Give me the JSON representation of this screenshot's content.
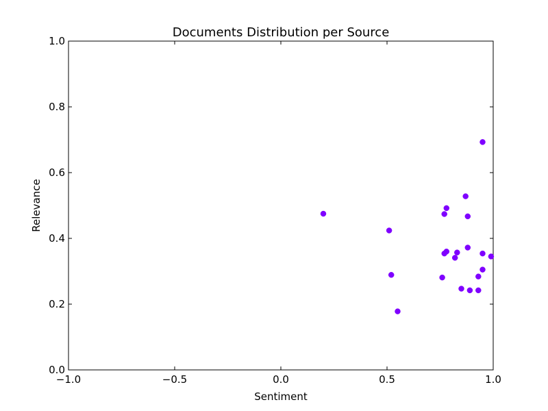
{
  "chart_data": {
    "type": "scatter",
    "title": "Documents Distribution per Source",
    "xlabel": "Sentiment",
    "ylabel": "Relevance",
    "xlim": [
      -1.0,
      1.0
    ],
    "ylim": [
      0.0,
      1.0
    ],
    "xticks": [
      -1.0,
      -0.5,
      0.0,
      0.5,
      1.0
    ],
    "xtick_labels": [
      "−1.0",
      "−0.5",
      "0.0",
      "0.5",
      "1.0"
    ],
    "yticks": [
      0.0,
      0.2,
      0.4,
      0.6,
      0.8,
      1.0
    ],
    "ytick_labels": [
      "0.0",
      "0.2",
      "0.4",
      "0.6",
      "0.8",
      "1.0"
    ],
    "grid": false,
    "legend": "none",
    "marker_color": "#7f00ff",
    "series": [
      {
        "points": [
          [
            0.2,
            0.475
          ],
          [
            0.51,
            0.424
          ],
          [
            0.52,
            0.289
          ],
          [
            0.55,
            0.178
          ],
          [
            0.76,
            0.281
          ],
          [
            0.77,
            0.474
          ],
          [
            0.77,
            0.354
          ],
          [
            0.78,
            0.492
          ],
          [
            0.78,
            0.36
          ],
          [
            0.82,
            0.341
          ],
          [
            0.83,
            0.357
          ],
          [
            0.85,
            0.247
          ],
          [
            0.87,
            0.528
          ],
          [
            0.88,
            0.467
          ],
          [
            0.88,
            0.372
          ],
          [
            0.89,
            0.242
          ],
          [
            0.93,
            0.242
          ],
          [
            0.93,
            0.284
          ],
          [
            0.95,
            0.693
          ],
          [
            0.95,
            0.354
          ],
          [
            0.95,
            0.305
          ],
          [
            0.99,
            0.345
          ]
        ]
      }
    ]
  }
}
